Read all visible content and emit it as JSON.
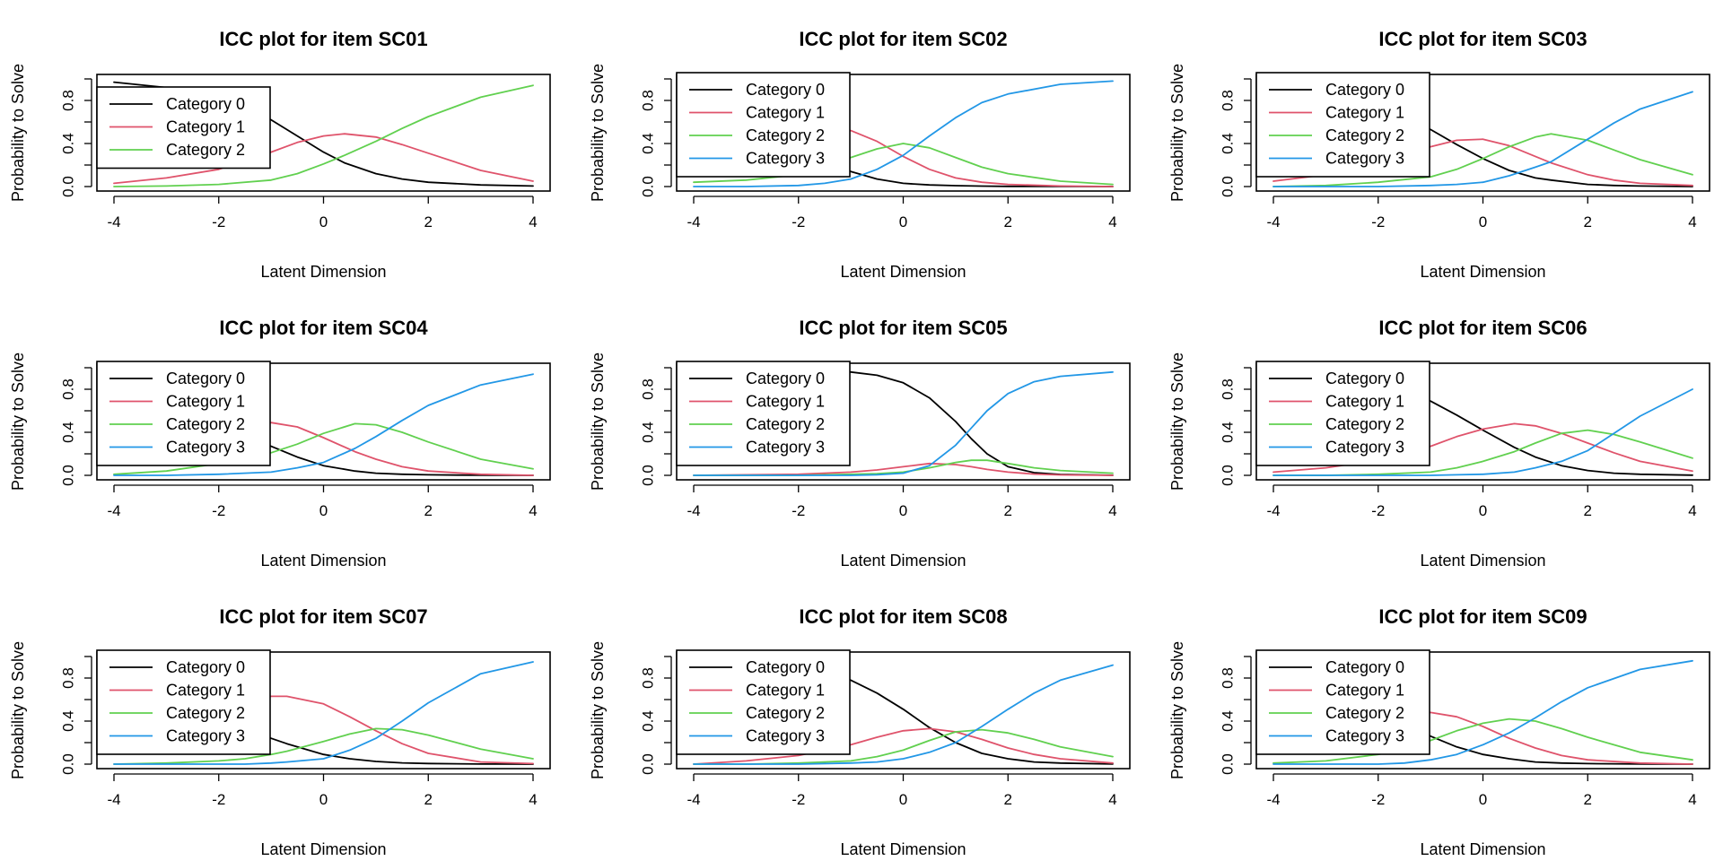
{
  "colors": {
    "Category 0": "#000000",
    "Category 1": "#DF536B",
    "Category 2": "#61D04F",
    "Category 3": "#2297E6"
  },
  "chart_data": [
    {
      "type": "line",
      "title": "ICC plot for item SC01",
      "xlabel": "Latent Dimension",
      "ylabel": "Probability to Solve",
      "xlim": [
        -4,
        4
      ],
      "ylim": [
        0,
        1
      ],
      "xticks": [
        -4,
        -2,
        0,
        2,
        4
      ],
      "xtick_labels": [
        "-4",
        "-2",
        "0",
        "2",
        "4"
      ],
      "yticks": [
        0,
        0.4,
        0.8
      ],
      "ytick_labels": [
        "0.0",
        "0.4",
        "0.8"
      ],
      "legend_position": "top-left",
      "x": [
        -4,
        -3,
        -2,
        -1,
        -0.5,
        0,
        0.4,
        1,
        1.5,
        2,
        3,
        4
      ],
      "series": [
        {
          "name": "Category 0",
          "values": [
            0.97,
            0.92,
            0.82,
            0.62,
            0.47,
            0.32,
            0.22,
            0.12,
            0.07,
            0.04,
            0.015,
            0.005
          ]
        },
        {
          "name": "Category 1",
          "values": [
            0.03,
            0.08,
            0.16,
            0.32,
            0.41,
            0.47,
            0.49,
            0.46,
            0.39,
            0.31,
            0.15,
            0.05
          ]
        },
        {
          "name": "Category 2",
          "values": [
            0.0,
            0.005,
            0.02,
            0.06,
            0.12,
            0.21,
            0.29,
            0.42,
            0.54,
            0.65,
            0.83,
            0.94
          ]
        }
      ]
    },
    {
      "type": "line",
      "title": "ICC plot for item SC02",
      "xlabel": "Latent Dimension",
      "ylabel": "Probability to Solve",
      "xlim": [
        -4,
        4
      ],
      "ylim": [
        0,
        1
      ],
      "xticks": [
        -4,
        -2,
        0,
        2,
        4
      ],
      "xtick_labels": [
        "-4",
        "-2",
        "0",
        "2",
        "4"
      ],
      "yticks": [
        0,
        0.4,
        0.8
      ],
      "ytick_labels": [
        "0.0",
        "0.4",
        "0.8"
      ],
      "legend_position": "top-left",
      "x": [
        -4,
        -3,
        -2,
        -1.5,
        -1,
        -0.5,
        0,
        0.5,
        1,
        1.5,
        2,
        3,
        4
      ],
      "series": [
        {
          "name": "Category 0",
          "values": [
            0.7,
            0.6,
            0.4,
            0.26,
            0.14,
            0.07,
            0.03,
            0.015,
            0.008,
            0.004,
            0.002,
            0.001,
            0.0
          ]
        },
        {
          "name": "Category 1",
          "values": [
            0.25,
            0.35,
            0.48,
            0.53,
            0.52,
            0.42,
            0.28,
            0.16,
            0.08,
            0.04,
            0.02,
            0.005,
            0.0
          ]
        },
        {
          "name": "Category 2",
          "values": [
            0.04,
            0.06,
            0.11,
            0.18,
            0.27,
            0.35,
            0.4,
            0.36,
            0.27,
            0.18,
            0.12,
            0.05,
            0.02
          ]
        },
        {
          "name": "Category 3",
          "values": [
            0.0,
            0.0,
            0.01,
            0.03,
            0.07,
            0.16,
            0.29,
            0.47,
            0.64,
            0.78,
            0.86,
            0.95,
            0.98
          ]
        }
      ]
    },
    {
      "type": "line",
      "title": "ICC plot for item SC03",
      "xlabel": "Latent Dimension",
      "ylabel": "Probability to Solve",
      "xlim": [
        -4,
        4
      ],
      "ylim": [
        0,
        1
      ],
      "xticks": [
        -4,
        -2,
        0,
        2,
        4
      ],
      "xtick_labels": [
        "-4",
        "-2",
        "0",
        "2",
        "4"
      ],
      "yticks": [
        0,
        0.4,
        0.8
      ],
      "ytick_labels": [
        "0.0",
        "0.4",
        "0.8"
      ],
      "legend_position": "top-left",
      "x": [
        -4,
        -3,
        -2,
        -1,
        -0.5,
        0,
        0.5,
        1,
        1.3,
        2,
        2.5,
        3,
        4
      ],
      "series": [
        {
          "name": "Category 0",
          "values": [
            0.95,
            0.88,
            0.74,
            0.53,
            0.39,
            0.26,
            0.15,
            0.08,
            0.06,
            0.02,
            0.01,
            0.005,
            0.0
          ]
        },
        {
          "name": "Category 1",
          "values": [
            0.05,
            0.11,
            0.22,
            0.37,
            0.43,
            0.44,
            0.38,
            0.28,
            0.22,
            0.11,
            0.06,
            0.03,
            0.01
          ]
        },
        {
          "name": "Category 2",
          "values": [
            0.0,
            0.01,
            0.04,
            0.09,
            0.16,
            0.26,
            0.37,
            0.46,
            0.49,
            0.43,
            0.34,
            0.25,
            0.11
          ]
        },
        {
          "name": "Category 3",
          "values": [
            0.0,
            0.0,
            0.0,
            0.01,
            0.02,
            0.04,
            0.1,
            0.18,
            0.23,
            0.44,
            0.59,
            0.72,
            0.88
          ]
        }
      ]
    },
    {
      "type": "line",
      "title": "ICC plot for item SC04",
      "xlabel": "Latent Dimension",
      "ylabel": "Probability to Solve",
      "xlim": [
        -4,
        4
      ],
      "ylim": [
        0,
        1
      ],
      "xticks": [
        -4,
        -2,
        0,
        2,
        4
      ],
      "xtick_labels": [
        "-4",
        "-2",
        "0",
        "2",
        "4"
      ],
      "yticks": [
        0,
        0.4,
        0.8
      ],
      "ytick_labels": [
        "0.0",
        "0.4",
        "0.8"
      ],
      "legend_position": "top-left",
      "x": [
        -4,
        -3,
        -2,
        -1,
        -0.5,
        0,
        0.6,
        1,
        1.5,
        2,
        3,
        4
      ],
      "series": [
        {
          "name": "Category 0",
          "values": [
            0.85,
            0.7,
            0.48,
            0.27,
            0.17,
            0.09,
            0.04,
            0.02,
            0.01,
            0.005,
            0.001,
            0.0
          ]
        },
        {
          "name": "Category 1",
          "values": [
            0.14,
            0.26,
            0.4,
            0.49,
            0.45,
            0.35,
            0.22,
            0.15,
            0.08,
            0.04,
            0.01,
            0.0
          ]
        },
        {
          "name": "Category 2",
          "values": [
            0.01,
            0.04,
            0.11,
            0.21,
            0.29,
            0.39,
            0.48,
            0.47,
            0.4,
            0.31,
            0.15,
            0.06
          ]
        },
        {
          "name": "Category 3",
          "values": [
            0.0,
            0.0,
            0.01,
            0.03,
            0.07,
            0.12,
            0.25,
            0.36,
            0.51,
            0.65,
            0.84,
            0.94
          ]
        }
      ]
    },
    {
      "type": "line",
      "title": "ICC plot for item SC05",
      "xlabel": "Latent Dimension",
      "ylabel": "Probability to Solve",
      "xlim": [
        -4,
        4
      ],
      "ylim": [
        0,
        1
      ],
      "xticks": [
        -4,
        -2,
        0,
        2,
        4
      ],
      "xtick_labels": [
        "-4",
        "-2",
        "0",
        "2",
        "4"
      ],
      "yticks": [
        0,
        0.4,
        0.8
      ],
      "ytick_labels": [
        "0.0",
        "0.4",
        "0.8"
      ],
      "legend_position": "top-left",
      "x": [
        -4,
        -3,
        -2,
        -1,
        -0.5,
        0,
        0.5,
        1,
        1.3,
        1.6,
        2,
        2.5,
        3,
        4
      ],
      "series": [
        {
          "name": "Category 0",
          "values": [
            1.0,
            0.99,
            0.98,
            0.96,
            0.93,
            0.86,
            0.72,
            0.5,
            0.34,
            0.2,
            0.08,
            0.025,
            0.008,
            0.001
          ]
        },
        {
          "name": "Category 1",
          "values": [
            0.0,
            0.005,
            0.01,
            0.03,
            0.05,
            0.08,
            0.11,
            0.1,
            0.08,
            0.055,
            0.03,
            0.012,
            0.004,
            0.0
          ]
        },
        {
          "name": "Category 2",
          "values": [
            0.0,
            0.0,
            0.0,
            0.01,
            0.015,
            0.03,
            0.07,
            0.12,
            0.14,
            0.14,
            0.11,
            0.07,
            0.045,
            0.02
          ]
        },
        {
          "name": "Category 3",
          "values": [
            0.0,
            0.0,
            0.0,
            0.0,
            0.005,
            0.02,
            0.09,
            0.28,
            0.44,
            0.6,
            0.76,
            0.87,
            0.92,
            0.96
          ]
        }
      ]
    },
    {
      "type": "line",
      "title": "ICC plot for item SC06",
      "xlabel": "Latent Dimension",
      "ylabel": "Probability to Solve",
      "xlim": [
        -4,
        4
      ],
      "ylim": [
        0,
        1
      ],
      "xticks": [
        -4,
        -2,
        0,
        2,
        4
      ],
      "xtick_labels": [
        "-4",
        "-2",
        "0",
        "2",
        "4"
      ],
      "yticks": [
        0,
        0.4,
        0.8
      ],
      "ytick_labels": [
        "0.0",
        "0.4",
        "0.8"
      ],
      "legend_position": "top-left",
      "x": [
        -4,
        -3,
        -2,
        -1,
        -0.5,
        0,
        0.6,
        1,
        1.5,
        2,
        2.5,
        3,
        4
      ],
      "series": [
        {
          "name": "Category 0",
          "values": [
            0.97,
            0.93,
            0.85,
            0.69,
            0.56,
            0.42,
            0.26,
            0.17,
            0.09,
            0.045,
            0.02,
            0.01,
            0.002
          ]
        },
        {
          "name": "Category 1",
          "values": [
            0.03,
            0.07,
            0.14,
            0.27,
            0.36,
            0.43,
            0.48,
            0.46,
            0.39,
            0.3,
            0.21,
            0.13,
            0.04
          ]
        },
        {
          "name": "Category 2",
          "values": [
            0.0,
            0.0,
            0.01,
            0.03,
            0.07,
            0.13,
            0.22,
            0.3,
            0.39,
            0.42,
            0.38,
            0.31,
            0.16
          ]
        },
        {
          "name": "Category 3",
          "values": [
            0.0,
            0.0,
            0.0,
            0.0,
            0.005,
            0.01,
            0.03,
            0.07,
            0.13,
            0.23,
            0.39,
            0.55,
            0.8
          ]
        }
      ]
    },
    {
      "type": "line",
      "title": "ICC plot for item SC07",
      "xlabel": "Latent Dimension",
      "ylabel": "Probability to Solve",
      "xlim": [
        -4,
        4
      ],
      "ylim": [
        0,
        1
      ],
      "xticks": [
        -4,
        -2,
        0,
        2,
        4
      ],
      "xtick_labels": [
        "-4",
        "-2",
        "0",
        "2",
        "4"
      ],
      "yticks": [
        0,
        0.4,
        0.8
      ],
      "ytick_labels": [
        "0.0",
        "0.4",
        "0.8"
      ],
      "legend_position": "top-left",
      "x": [
        -4,
        -3,
        -2,
        -1.5,
        -1,
        -0.7,
        0,
        0.5,
        1,
        1.5,
        2,
        3,
        4
      ],
      "series": [
        {
          "name": "Category 0",
          "values": [
            0.85,
            0.7,
            0.47,
            0.36,
            0.24,
            0.19,
            0.09,
            0.05,
            0.025,
            0.012,
            0.006,
            0.001,
            0.0
          ]
        },
        {
          "name": "Category 1",
          "values": [
            0.15,
            0.29,
            0.5,
            0.59,
            0.63,
            0.63,
            0.56,
            0.44,
            0.31,
            0.19,
            0.1,
            0.02,
            0.005
          ]
        },
        {
          "name": "Category 2",
          "values": [
            0.0,
            0.01,
            0.03,
            0.05,
            0.09,
            0.12,
            0.21,
            0.28,
            0.33,
            0.32,
            0.27,
            0.14,
            0.05
          ]
        },
        {
          "name": "Category 3",
          "values": [
            0.0,
            0.0,
            0.0,
            0.0,
            0.01,
            0.02,
            0.05,
            0.13,
            0.24,
            0.4,
            0.57,
            0.84,
            0.95
          ]
        }
      ]
    },
    {
      "type": "line",
      "title": "ICC plot for item SC08",
      "xlabel": "Latent Dimension",
      "ylabel": "Probability to Solve",
      "xlim": [
        -4,
        4
      ],
      "ylim": [
        0,
        1
      ],
      "xticks": [
        -4,
        -2,
        0,
        2,
        4
      ],
      "xtick_labels": [
        "-4",
        "-2",
        "0",
        "2",
        "4"
      ],
      "yticks": [
        0,
        0.4,
        0.8
      ],
      "ytick_labels": [
        "0.0",
        "0.4",
        "0.8"
      ],
      "legend_position": "top-left",
      "x": [
        -4,
        -3,
        -2,
        -1,
        -0.5,
        0,
        0.5,
        1,
        1.5,
        2,
        2.5,
        3,
        4
      ],
      "series": [
        {
          "name": "Category 0",
          "values": [
            1.0,
            0.97,
            0.91,
            0.78,
            0.66,
            0.51,
            0.34,
            0.2,
            0.1,
            0.05,
            0.02,
            0.01,
            0.001
          ]
        },
        {
          "name": "Category 1",
          "values": [
            0.0,
            0.03,
            0.08,
            0.18,
            0.25,
            0.31,
            0.33,
            0.3,
            0.23,
            0.15,
            0.09,
            0.05,
            0.01
          ]
        },
        {
          "name": "Category 2",
          "values": [
            0.0,
            0.0,
            0.01,
            0.03,
            0.07,
            0.13,
            0.22,
            0.3,
            0.32,
            0.29,
            0.23,
            0.16,
            0.07
          ]
        },
        {
          "name": "Category 3",
          "values": [
            0.0,
            0.0,
            0.0,
            0.01,
            0.02,
            0.05,
            0.11,
            0.2,
            0.35,
            0.51,
            0.66,
            0.78,
            0.92
          ]
        }
      ]
    },
    {
      "type": "line",
      "title": "ICC plot for item SC09",
      "xlabel": "Latent Dimension",
      "ylabel": "Probability to Solve",
      "xlim": [
        -4,
        4
      ],
      "ylim": [
        0,
        1
      ],
      "xticks": [
        -4,
        -2,
        0,
        2,
        4
      ],
      "xtick_labels": [
        "-4",
        "-2",
        "0",
        "2",
        "4"
      ],
      "yticks": [
        0,
        0.4,
        0.8
      ],
      "ytick_labels": [
        "0.0",
        "0.4",
        "0.8"
      ],
      "legend_position": "top-left",
      "x": [
        -4,
        -3,
        -2,
        -1.5,
        -1,
        -0.5,
        0,
        0.5,
        1,
        1.5,
        2,
        3,
        4
      ],
      "series": [
        {
          "name": "Category 0",
          "values": [
            0.88,
            0.74,
            0.52,
            0.39,
            0.26,
            0.16,
            0.09,
            0.05,
            0.02,
            0.01,
            0.005,
            0.001,
            0.0
          ]
        },
        {
          "name": "Category 1",
          "values": [
            0.11,
            0.23,
            0.39,
            0.46,
            0.48,
            0.44,
            0.35,
            0.24,
            0.15,
            0.08,
            0.04,
            0.01,
            0.0
          ]
        },
        {
          "name": "Category 2",
          "values": [
            0.01,
            0.03,
            0.09,
            0.14,
            0.22,
            0.31,
            0.38,
            0.42,
            0.4,
            0.33,
            0.25,
            0.11,
            0.04
          ]
        },
        {
          "name": "Category 3",
          "values": [
            0.0,
            0.0,
            0.0,
            0.01,
            0.04,
            0.09,
            0.18,
            0.29,
            0.43,
            0.58,
            0.71,
            0.88,
            0.96
          ]
        }
      ]
    }
  ]
}
